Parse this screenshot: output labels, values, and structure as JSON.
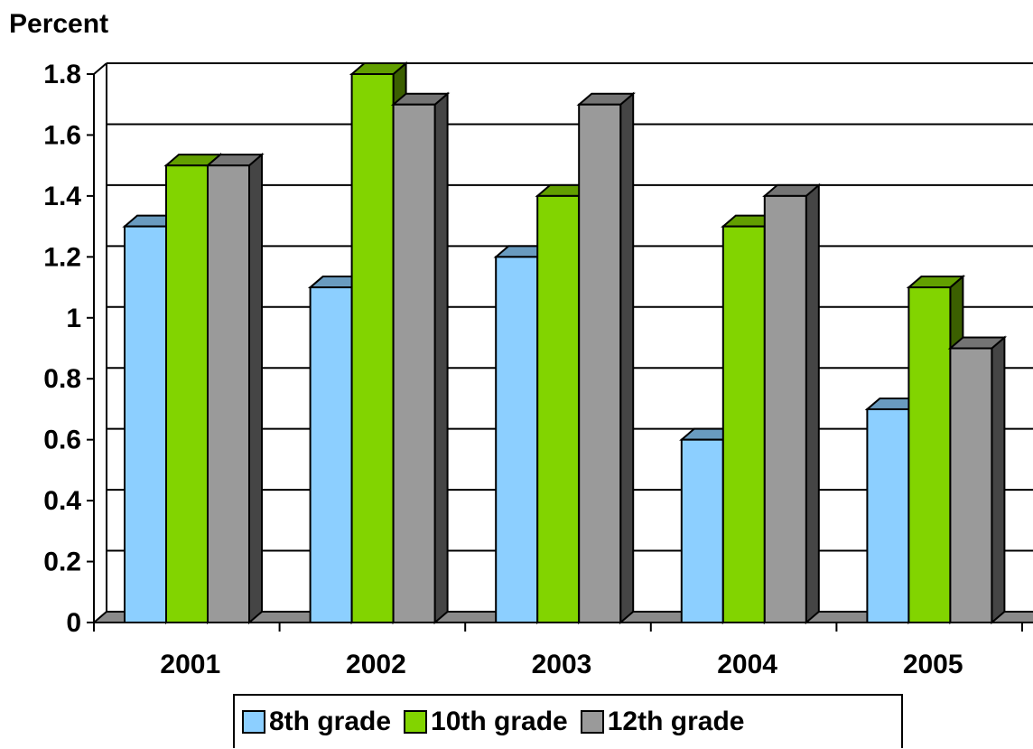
{
  "chart_data": {
    "type": "bar",
    "title": "",
    "ylabel": "Percent",
    "xlabel": "",
    "categories": [
      "2001",
      "2002",
      "2003",
      "2004",
      "2005"
    ],
    "series": [
      {
        "name": "8th grade",
        "values": [
          1.3,
          1.1,
          1.2,
          0.6,
          0.7
        ],
        "color": "#8ccfff"
      },
      {
        "name": "10th grade",
        "values": [
          1.5,
          1.8,
          1.4,
          1.3,
          1.1
        ],
        "color": "#82d400"
      },
      {
        "name": "12th grade",
        "values": [
          1.5,
          1.7,
          1.7,
          1.4,
          0.9
        ],
        "color": "#9a9a9a"
      }
    ],
    "ylim": [
      0,
      1.8
    ],
    "yticks": [
      "0",
      "0.2",
      "0.4",
      "0.6",
      "0.8",
      "1",
      "1.2",
      "1.4",
      "1.6",
      "1.8"
    ],
    "grid": true,
    "legend": "bottom",
    "style": "3d"
  }
}
